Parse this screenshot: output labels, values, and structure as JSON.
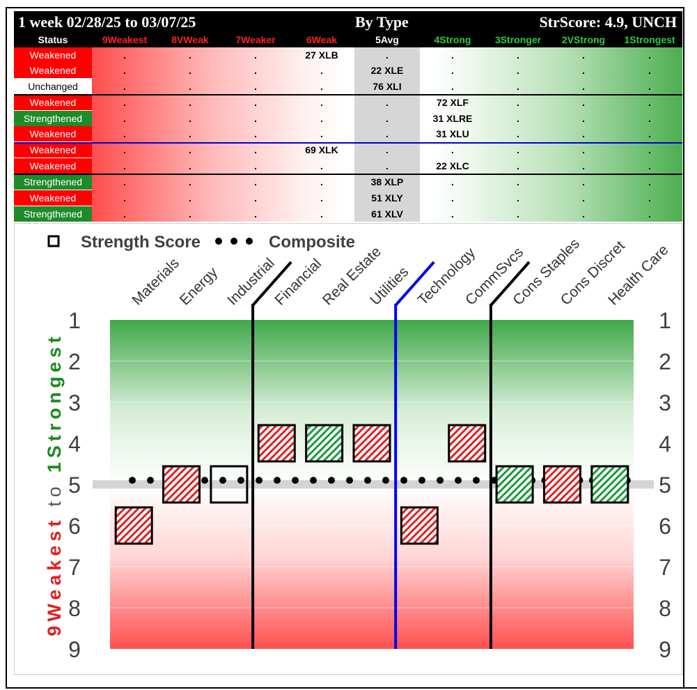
{
  "header": {
    "title_left": "1 week 02/28/25 to 03/07/25",
    "title_mid": "By Type",
    "title_right": "StrScore: 4.9, UNCH"
  },
  "columns": [
    {
      "label": "Status",
      "color": "#ffffff"
    },
    {
      "label": "9Weakest",
      "color": "#ff2020"
    },
    {
      "label": "8VWeak",
      "color": "#ff2020"
    },
    {
      "label": "7Weaker",
      "color": "#ff2020"
    },
    {
      "label": "6Weak",
      "color": "#ff2020"
    },
    {
      "label": "5Avg",
      "color": "#ffffff"
    },
    {
      "label": "4Strong",
      "color": "#2ecc40"
    },
    {
      "label": "3Stronger",
      "color": "#2ecc40"
    },
    {
      "label": "2VStrong",
      "color": "#2ecc40"
    },
    {
      "label": "1Strongest",
      "color": "#2ecc40"
    }
  ],
  "rows": [
    {
      "status": "Weakened",
      "col": 6,
      "label": "27 XLB"
    },
    {
      "status": "Weakened",
      "col": 5,
      "label": "22 XLE"
    },
    {
      "status": "Unchanged",
      "col": 5,
      "label": "76 XLI"
    },
    {
      "status": "Weakened",
      "col": 4,
      "label": "72 XLF"
    },
    {
      "status": "Strengthened",
      "col": 4,
      "label": "31 XLRE"
    },
    {
      "status": "Weakened",
      "col": 4,
      "label": "31 XLU"
    },
    {
      "status": "Weakened",
      "col": 6,
      "label": "69 XLK"
    },
    {
      "status": "Weakened",
      "col": 4,
      "label": "22 XLC"
    },
    {
      "status": "Strengthened",
      "col": 5,
      "label": "38 XLP"
    },
    {
      "status": "Weakened",
      "col": 5,
      "label": "51 XLY"
    },
    {
      "status": "Strengthened",
      "col": 5,
      "label": "61 XLV"
    }
  ],
  "dot_char": ".",
  "chart_data": {
    "type": "scatter",
    "legend": {
      "strength_label": "Strength Score",
      "composite_label": "Composite"
    },
    "ylabel_weak": "9Weakest",
    "ylabel_to": "to",
    "ylabel_strong": "1Strongest",
    "categories": [
      "Materials",
      "Energy",
      "Industrial",
      "Financial",
      "Real Estate",
      "Utilities",
      "Technology",
      "CommSvcs",
      "Cons Staples",
      "Cons Discret",
      "Health Care"
    ],
    "strength_score": [
      6,
      5,
      5,
      4,
      4,
      4,
      6,
      4,
      5,
      5,
      5
    ],
    "status": [
      "Weakened",
      "Weakened",
      "Unchanged",
      "Weakened",
      "Strengthened",
      "Weakened",
      "Weakened",
      "Weakened",
      "Strengthened",
      "Weakened",
      "Strengthened"
    ],
    "composite": 4.9,
    "ylim": [
      1,
      9
    ],
    "yticks": [
      "1",
      "2",
      "3",
      "4",
      "5",
      "6",
      "7",
      "8",
      "9"
    ],
    "group_dividers_after": [
      2,
      5,
      7
    ],
    "colors": {
      "weakened": "#e02020",
      "strengthened": "#1a9a3a",
      "unchanged": "#000000",
      "divider": "#000000",
      "divider_blue": "#0000ee",
      "strong_axis_label": "#1a8a1a",
      "weak_axis_label": "#e02020"
    }
  }
}
